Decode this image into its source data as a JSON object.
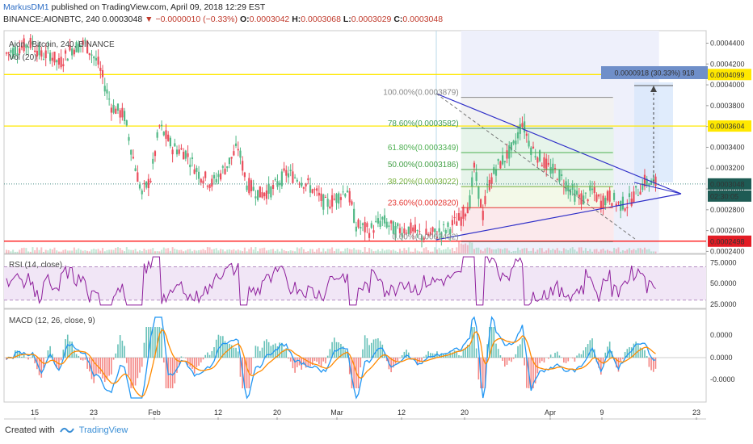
{
  "header": {
    "author": "MarkusDM1",
    "published": "published on TradingView.com, April 09, 2018 12:29 EST",
    "symbol": "BINANCE:AIONBTC, 240",
    "last": "0.0003048",
    "change": "−0.0000010 (−0.33%)",
    "o_label": "O:",
    "o": "0.0003042",
    "h_label": "H:",
    "h": "0.0003068",
    "l_label": "L:",
    "l": "0.0003029",
    "c_label": "C:",
    "c": "0.0003048"
  },
  "legend": {
    "main": "Aion / Bitcoin, 240, BINANCE",
    "vol": "Vol (20)"
  },
  "rsi": {
    "title": "RSI (14, close)",
    "ticks": [
      "75.0000",
      "50.0000",
      "25.0000"
    ],
    "ticks_v": [
      75,
      50,
      25
    ]
  },
  "macd": {
    "title": "MACD (12, 26, close, 9)",
    "ticks": [
      "0.0000",
      "0.0000",
      "-0.0000"
    ]
  },
  "footer": {
    "created": "Created with",
    "brand": "TradingView"
  },
  "colors": {
    "up": "#53b987",
    "down": "#eb4d5c",
    "hline": "#ffe800",
    "support": "#ff0000",
    "triangle": "#2e2ec8",
    "rsi": "#8e1f9c",
    "macd": "#2196f3",
    "signal": "#ff8a00",
    "badge": "#6f8fc9",
    "last": "#1e5b54"
  },
  "chart_data": [
    {
      "type": "candlestick",
      "title": "Aion / Bitcoin, 240, BINANCE",
      "ylim": [
        0.000238,
        0.000452
      ],
      "y_ticks": [
        "0.0004400",
        "0.0004200",
        "0.0004000",
        "0.0003800",
        "0.0003600",
        "0.0003400",
        "0.0003200",
        "0.0003000",
        "0.0002800",
        "0.0002600",
        "0.0002400"
      ],
      "y_ticks_v": [
        0.00044,
        0.00042,
        0.0004,
        0.00038,
        0.00036,
        0.00034,
        0.00032,
        0.0003,
        0.00028,
        0.00026,
        0.00024
      ],
      "x_ticks": [
        "15",
        "23",
        "Feb",
        "12",
        "20",
        "Mar",
        "12",
        "20",
        "Apr",
        "9",
        "23"
      ],
      "trend": [
        [
          0,
          0.00043
        ],
        [
          6,
          0.000436
        ],
        [
          12,
          0.00044
        ],
        [
          16,
          0.000428
        ],
        [
          20,
          0.00043
        ],
        [
          24,
          0.00042
        ],
        [
          30,
          0.000435
        ],
        [
          36,
          0.00044
        ],
        [
          42,
          0.00042
        ],
        [
          48,
          0.00038
        ],
        [
          54,
          0.00037
        ],
        [
          58,
          0.00033
        ],
        [
          62,
          0.000295
        ],
        [
          66,
          0.00031
        ],
        [
          70,
          0.00036
        ],
        [
          76,
          0.00034
        ],
        [
          82,
          0.000335
        ],
        [
          88,
          0.000315
        ],
        [
          94,
          0.000305
        ],
        [
          100,
          0.00032
        ],
        [
          106,
          0.00034
        ],
        [
          110,
          0.000305
        ],
        [
          116,
          0.000295
        ],
        [
          122,
          0.0003
        ],
        [
          128,
          0.000315
        ],
        [
          134,
          0.00031
        ],
        [
          140,
          0.0003
        ],
        [
          146,
          0.000285
        ],
        [
          150,
          0.00029
        ],
        [
          156,
          0.0003
        ],
        [
          160,
          0.000265
        ],
        [
          166,
          0.00026
        ],
        [
          172,
          0.00027
        ],
        [
          178,
          0.00026
        ],
        [
          184,
          0.000262
        ],
        [
          190,
          0.000255
        ],
        [
          196,
          0.000257
        ],
        [
          202,
          0.000262
        ],
        [
          208,
          0.000272
        ],
        [
          212,
          0.000288
        ],
        [
          214,
          0.00032
        ],
        [
          218,
          0.000275
        ],
        [
          220,
          0.0003
        ],
        [
          224,
          0.00032
        ],
        [
          228,
          0.00033
        ],
        [
          232,
          0.00034
        ],
        [
          236,
          0.000365
        ],
        [
          240,
          0.00034
        ],
        [
          244,
          0.00033
        ],
        [
          248,
          0.00032
        ],
        [
          252,
          0.000315
        ],
        [
          256,
          0.000305
        ],
        [
          260,
          0.000295
        ],
        [
          264,
          0.00029
        ],
        [
          268,
          0.000298
        ],
        [
          272,
          0.000287
        ],
        [
          276,
          0.000293
        ],
        [
          280,
          0.000285
        ],
        [
          284,
          0.000286
        ],
        [
          288,
          0.000296
        ],
        [
          292,
          0.000307
        ],
        [
          295,
          0.000305
        ]
      ],
      "last_price": "0.0003048",
      "countdown": "02:30:05",
      "horizontal_levels": [
        {
          "label": "0.0004099",
          "value": 0.0004099,
          "color": "#ffe800"
        },
        {
          "label": "0.0003604",
          "value": 0.0003604,
          "color": "#ffe800"
        },
        {
          "label": "0.0002498",
          "value": 0.0002498,
          "color": "#ff0000"
        }
      ],
      "fib_levels": [
        {
          "label": "100.00%(0.0003879)",
          "value": 0.0003879,
          "color": "#8a8a8a"
        },
        {
          "label": "78.60%(0.0003582)",
          "value": 0.0003582,
          "color": "#3f9c5a"
        },
        {
          "label": "61.80%(0.0003349)",
          "value": 0.0003349,
          "color": "#4caf50"
        },
        {
          "label": "50.00%(0.0003186)",
          "value": 0.0003186,
          "color": "#43a047"
        },
        {
          "label": "38.20%(0.0003022)",
          "value": 0.0003022,
          "color": "#7cb342"
        },
        {
          "label": "23.60%(0.0002820)",
          "value": 0.000282,
          "color": "#e53935"
        },
        {
          "label": "0.00%(0.0002492)",
          "value": 0.0002492,
          "color": "#8a8a8a"
        }
      ],
      "measurement": "0.0000918 (30.33%) 918",
      "fib_range_time": [
        208,
        276
      ]
    },
    {
      "type": "line",
      "title": "RSI (14, close)",
      "ylim": [
        20,
        85
      ],
      "bands": [
        70,
        30
      ]
    },
    {
      "type": "line",
      "title": "MACD (12, 26, close, 9)",
      "series": [
        {
          "values": []
        },
        {
          "values": []
        }
      ]
    }
  ]
}
